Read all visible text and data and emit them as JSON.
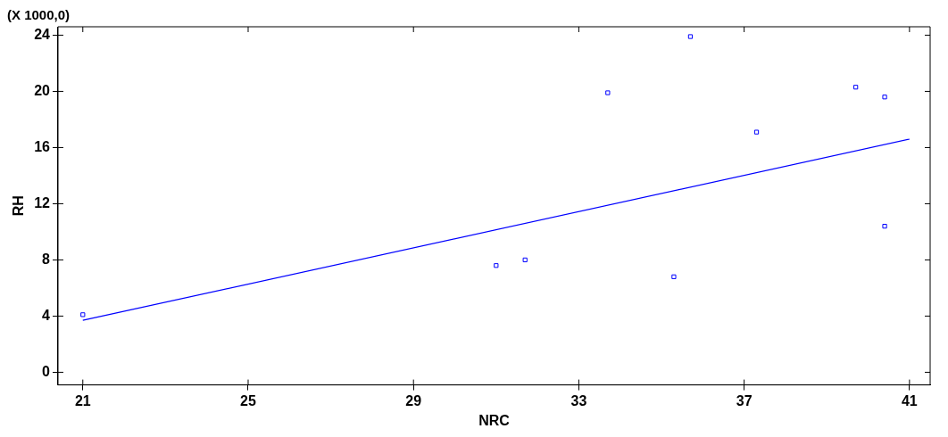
{
  "chart_data": {
    "type": "scatter",
    "xlabel": "NRC",
    "ylabel": "RH",
    "annotations": [
      "(X 1000,0)"
    ],
    "xlim": [
      20.4,
      41.5
    ],
    "ylim": [
      -0.9,
      24.6
    ],
    "xticks": [
      21,
      25,
      29,
      33,
      37,
      41
    ],
    "yticks": [
      0,
      4,
      8,
      12,
      16,
      20,
      24
    ],
    "grid": false,
    "legend": false,
    "series": [
      {
        "color": "#0000ff",
        "marker": "square",
        "x": [
          21,
          31,
          31.7,
          33.7,
          35.3,
          35.7,
          37.3,
          39.7,
          40.4,
          40.4
        ],
        "values": [
          4.1,
          7.6,
          8.0,
          19.9,
          6.8,
          23.9,
          17.1,
          20.3,
          19.6,
          10.4
        ]
      },
      {
        "type": "line",
        "color": "#0000ff",
        "marker": "none",
        "x": [
          21,
          41
        ],
        "values": [
          3.7,
          16.6
        ]
      }
    ]
  }
}
